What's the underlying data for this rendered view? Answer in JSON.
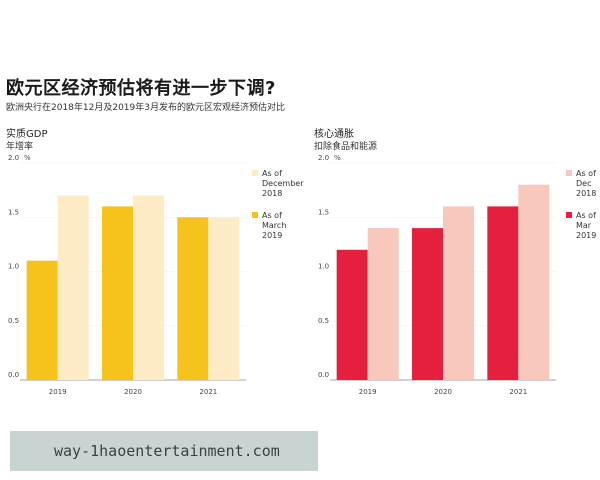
{
  "title": "欧元区经济预估将有进一步下调?",
  "subtitle": "欧洲央行在2018年12月及2019年3月发布的欧元区宏观经济预估对比",
  "watermark": "way-1haoentertainment.com",
  "chart_data": [
    {
      "type": "bar",
      "title": "实质GDP",
      "subtitle": "年增率",
      "ylabel": "%",
      "ylim": [
        0,
        2.0
      ],
      "yticks": [
        "0.0",
        "0.5",
        "1.0",
        "1.5",
        "2.0"
      ],
      "categories": [
        "2019",
        "2020",
        "2021"
      ],
      "series": [
        {
          "name": "As of March 2019",
          "legend_lines": [
            "As of",
            "March",
            "2019"
          ],
          "color": "#f6c21c",
          "values": [
            1.1,
            1.6,
            1.5
          ]
        },
        {
          "name": "As of December 2018",
          "legend_lines": [
            "As of",
            "December",
            "2018"
          ],
          "color": "#fdebc6",
          "values": [
            1.7,
            1.7,
            1.5
          ]
        }
      ],
      "grid": true
    },
    {
      "type": "bar",
      "title": "核心通胀",
      "subtitle": "扣除食品和能源",
      "ylabel": "%",
      "ylim": [
        0,
        2.0
      ],
      "yticks": [
        "0.0",
        "0.5",
        "1.0",
        "1.5",
        "2.0"
      ],
      "categories": [
        "2019",
        "2020",
        "2021"
      ],
      "series": [
        {
          "name": "As of Mar 2019",
          "legend_lines": [
            "As of",
            "Mar",
            "2019"
          ],
          "color": "#e5203f",
          "values": [
            1.2,
            1.4,
            1.6
          ]
        },
        {
          "name": "As of Dec 2018",
          "legend_lines": [
            "As of",
            "Dec",
            "2018"
          ],
          "color": "#f8c8bd",
          "values": [
            1.4,
            1.6,
            1.8
          ]
        }
      ],
      "grid": true
    }
  ]
}
